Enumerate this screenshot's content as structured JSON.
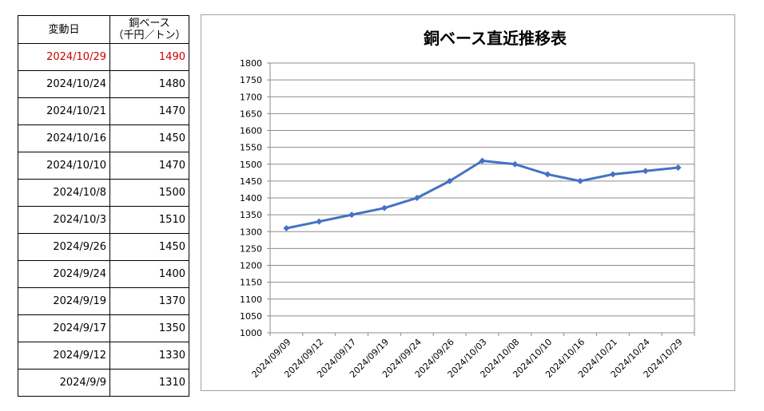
{
  "table": {
    "header_date": "変動日",
    "header_price_line1": "銅ベース",
    "header_price_line2": "（千円／トン）",
    "rows": [
      {
        "date": "2024/10/29",
        "price": "1490",
        "highlight": true
      },
      {
        "date": "2024/10/24",
        "price": "1480"
      },
      {
        "date": "2024/10/21",
        "price": "1470"
      },
      {
        "date": "2024/10/16",
        "price": "1450"
      },
      {
        "date": "2024/10/10",
        "price": "1470"
      },
      {
        "date": "2024/10/8",
        "price": "1500"
      },
      {
        "date": "2024/10/3",
        "price": "1510"
      },
      {
        "date": "2024/9/26",
        "price": "1450"
      },
      {
        "date": "2024/9/24",
        "price": "1400"
      },
      {
        "date": "2024/9/19",
        "price": "1370"
      },
      {
        "date": "2024/9/17",
        "price": "1350"
      },
      {
        "date": "2024/9/12",
        "price": "1330"
      },
      {
        "date": "2024/9/9",
        "price": "1310"
      }
    ],
    "highlight_color": "#cc0000"
  },
  "chart_data": {
    "type": "line",
    "title": "銅ベース直近推移表",
    "xlabel": "",
    "ylabel": "",
    "categories": [
      "2024/09/09",
      "2024/09/12",
      "2024/09/17",
      "2024/09/19",
      "2024/09/24",
      "2024/09/26",
      "2024/10/03",
      "2024/10/08",
      "2024/10/10",
      "2024/10/16",
      "2024/10/21",
      "2024/10/24",
      "2024/10/29"
    ],
    "series": [
      {
        "values": [
          1310,
          1330,
          1350,
          1370,
          1400,
          1450,
          1510,
          1500,
          1470,
          1450,
          1470,
          1480,
          1490
        ],
        "color": "#4472c4"
      }
    ],
    "ylim": [
      1000,
      1800
    ],
    "yticks": [
      1000,
      1050,
      1100,
      1150,
      1200,
      1250,
      1300,
      1350,
      1400,
      1450,
      1500,
      1550,
      1600,
      1650,
      1700,
      1750,
      1800
    ],
    "grid": true,
    "legend": "none"
  }
}
